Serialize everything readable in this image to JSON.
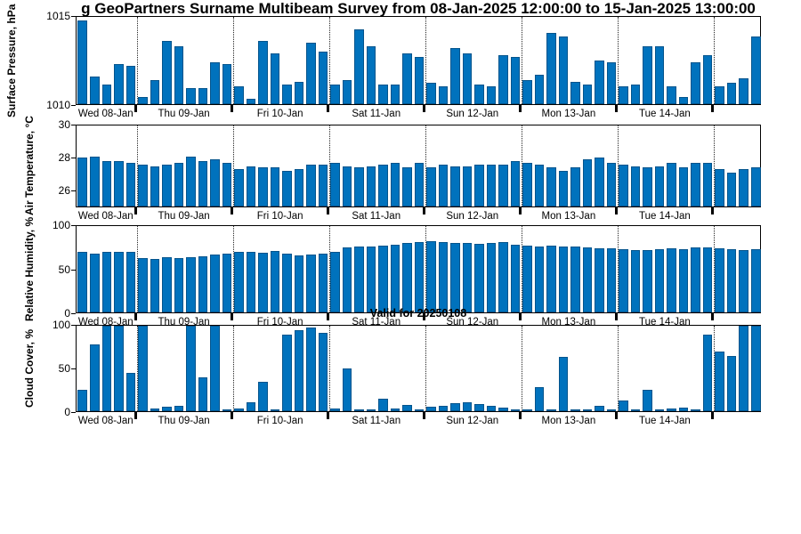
{
  "title": "g GeoPartners Surname Multibeam Survey from 08-Jan-2025 12:00:00 to 15-Jan-2025 13:00:00",
  "annotation": "Valid for 20250108",
  "colors": {
    "bar": "#0072BD",
    "axis": "#000000",
    "grid": "#000000"
  },
  "chart_data": {
    "type": "bar",
    "title": "GeoPartners Surname Multibeam Survey from 08-Jan-2025 12:00:00 to 15-Jan-2025 13:00:00",
    "x_day_labels": [
      "Wed 08-Jan",
      "Thu 09-Jan",
      "Fri 10-Jan",
      "Sat 11-Jan",
      "Sun 12-Jan",
      "Mon 13-Jan",
      "Tue 14-Jan"
    ],
    "day_label_center_index": [
      2.5,
      9,
      17,
      25,
      33,
      41,
      49
    ],
    "day_boundaries_index": [
      5,
      13,
      21,
      29,
      37,
      45,
      53
    ],
    "n_points": 57,
    "grid": "dotted vertical lines at day boundaries",
    "legend": "none",
    "panels": [
      {
        "name": "surface-pressure",
        "ylabel": "Surface Pressure, hPa",
        "ylim": [
          1010,
          1015
        ],
        "yticks": [
          1010,
          1015
        ],
        "values": [
          1014.8,
          1011.6,
          1011.1,
          1012.3,
          1012.2,
          1010.4,
          1011.4,
          1013.6,
          1013.3,
          1010.9,
          1010.9,
          1012.4,
          1012.3,
          1011.0,
          1010.3,
          1013.6,
          1012.9,
          1011.1,
          1011.3,
          1013.5,
          1013.0,
          1011.1,
          1011.4,
          1014.3,
          1013.3,
          1011.1,
          1011.1,
          1012.9,
          1012.7,
          1011.2,
          1011.0,
          1013.2,
          1012.9,
          1011.1,
          1011.0,
          1012.8,
          1012.7,
          1011.4,
          1011.7,
          1014.1,
          1013.9,
          1011.3,
          1011.1,
          1012.5,
          1012.4,
          1011.0,
          1011.1,
          1013.3,
          1013.3,
          1011.0,
          1010.4,
          1012.4,
          1012.8,
          1011.0,
          1011.2,
          1011.5,
          1013.9
        ]
      },
      {
        "name": "air-temperature",
        "ylabel": "Air Temperature, °C",
        "ylim": [
          25,
          30
        ],
        "yticks": [
          26,
          28,
          30
        ],
        "values": [
          28.0,
          28.1,
          27.8,
          27.8,
          27.7,
          27.6,
          27.5,
          27.6,
          27.7,
          28.1,
          27.8,
          27.9,
          27.7,
          27.3,
          27.5,
          27.4,
          27.4,
          27.2,
          27.3,
          27.6,
          27.6,
          27.7,
          27.5,
          27.4,
          27.5,
          27.6,
          27.7,
          27.4,
          27.7,
          27.4,
          27.6,
          27.5,
          27.5,
          27.6,
          27.6,
          27.6,
          27.8,
          27.7,
          27.6,
          27.4,
          27.2,
          27.4,
          27.9,
          28.0,
          27.7,
          27.6,
          27.5,
          27.4,
          27.5,
          27.7,
          27.4,
          27.7,
          27.7,
          27.3,
          27.1,
          27.3,
          27.4
        ]
      },
      {
        "name": "relative-humidity",
        "ylabel": "Relative Humidity, %",
        "ylim": [
          0,
          100
        ],
        "yticks": [
          0,
          50,
          100
        ],
        "values": [
          70,
          68,
          70,
          70,
          70,
          63,
          62,
          64,
          63,
          64,
          65,
          67,
          68,
          70,
          70,
          69,
          71,
          68,
          66,
          67,
          68,
          70,
          75,
          76,
          76,
          77,
          78,
          80,
          81,
          82,
          81,
          80,
          80,
          79,
          80,
          81,
          78,
          77,
          76,
          77,
          76,
          76,
          75,
          74,
          74,
          73,
          72,
          72,
          73,
          74,
          73,
          75,
          75,
          74,
          73,
          72,
          73
        ]
      },
      {
        "name": "cloud-cover",
        "ylabel": "Cloud Cover, %",
        "ylim": [
          0,
          100
        ],
        "yticks": [
          0,
          50,
          100
        ],
        "values": [
          25,
          78,
          100,
          100,
          45,
          100,
          3,
          5,
          6,
          100,
          40,
          100,
          2,
          3,
          10,
          34,
          2,
          90,
          95,
          98,
          92,
          3,
          50,
          2,
          2,
          15,
          3,
          7,
          2,
          5,
          6,
          9,
          10,
          8,
          6,
          4,
          2,
          1,
          28,
          2,
          64,
          1,
          2,
          6,
          2,
          12,
          2,
          25,
          2,
          3,
          4,
          2,
          90,
          70,
          65,
          100,
          100
        ]
      }
    ]
  }
}
